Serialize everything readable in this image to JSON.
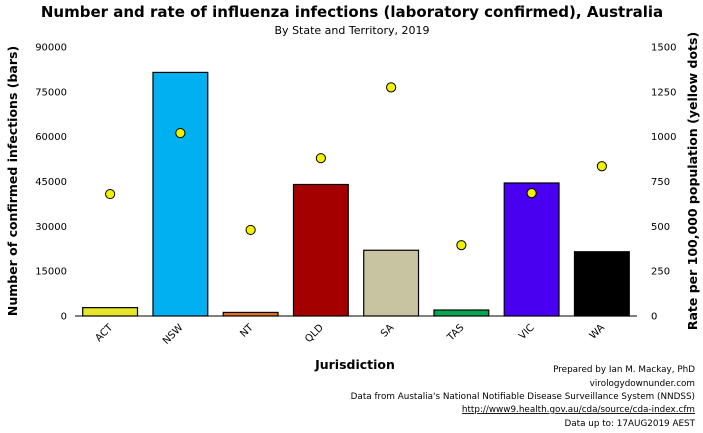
{
  "chart_data": {
    "type": "bar",
    "title": "Number and rate of influenza infections (laboratory confirmed), Australia",
    "subtitle": "By State and Territory, 2019",
    "xlabel": "Jurisdiction",
    "ylabel": "Number of confirmed infections (bars)",
    "y2label": "Rate per 100,000 population (yellow dots)",
    "ylim": [
      0,
      90000
    ],
    "y2lim": [
      0,
      1500
    ],
    "yticks": [
      "0",
      "15000",
      "30000",
      "45000",
      "60000",
      "75000",
      "90000"
    ],
    "y2ticks": [
      "0",
      "250",
      "500",
      "750",
      "1000",
      "1250",
      "1500"
    ],
    "categories": [
      "ACT",
      "NSW",
      "NT",
      "QLD",
      "SA",
      "TAS",
      "VIC",
      "WA"
    ],
    "bar_values": [
      2800,
      81500,
      1200,
      44000,
      22000,
      2000,
      44500,
      21500
    ],
    "bar_colors": [
      "#e5e52c",
      "#00b0f0",
      "#e46c1e",
      "#a50000",
      "#c8c3a0",
      "#00a651",
      "#4a00f0",
      "#000000"
    ],
    "rate_values": [
      680,
      1020,
      480,
      880,
      1275,
      395,
      685,
      835
    ],
    "dot_color": "#f2f200",
    "grid": false
  },
  "credits": {
    "line1": "Prepared by Ian M. Mackay, PhD",
    "line2": "virologydownunder.com",
    "line3": "Data from Austalia's National Notifiable Disease Surveillance System (NNDSS)",
    "line4": "http://www9.health.gov.au/cda/source/cda-index.cfm",
    "line5": "Data up to: 17AUG2019 AEST"
  }
}
